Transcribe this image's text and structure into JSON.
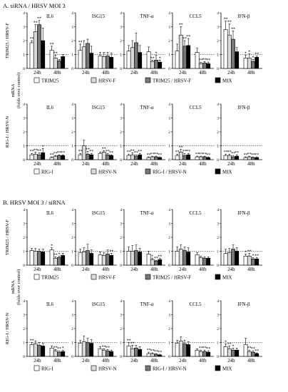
{
  "sections": [
    {
      "title": "A.  siRNA / HRSV MOI 3",
      "rows": [
        {
          "ylabel": "TRIM25 / HRSV-F",
          "legend": [
            "TRIM25",
            "HRSV-F",
            "TRIM25 / HRSV-F",
            "MIX"
          ]
        },
        {
          "ylabel": "RIG-I / HRSV-N",
          "legend": [
            "RIG-I",
            "HRSV-N",
            "RIG-I / HRSV-N",
            "MIX"
          ]
        }
      ]
    },
    {
      "title": "B.  HRSV MOI 3 / siRNA",
      "rows": [
        {
          "ylabel": "TRIM25 / HRSV-F",
          "legend": [
            "TRIM25",
            "HRSV-F",
            "TRIM25 / HRSV-F",
            "MIX"
          ]
        },
        {
          "ylabel": "RIG-I / HRSV-N",
          "legend": [
            "RIG-I",
            "HRSV-N",
            "RIG-I / HRSV-N",
            "MIX"
          ]
        }
      ]
    }
  ],
  "shared_ylabel": [
    "mRNA",
    "(folds over control)"
  ],
  "colors": {
    "bar_1": "#ffffff",
    "bar_2": "#d9d9d9",
    "bar_3": "#777777",
    "bar_4": "#000000"
  },
  "chart_data": {
    "type": "bar",
    "categories": [
      "24h",
      "48h"
    ],
    "genes": [
      "IL6",
      "ISG15",
      "TNF-α",
      "CCL5",
      "IFN-β"
    ],
    "ylim": [
      0,
      4
    ],
    "yticks": [
      0,
      1,
      2,
      3,
      4
    ],
    "reference_line": 1,
    "panels": [
      {
        "section": 0,
        "row": 0,
        "gene": "IL6",
        "values": [
          [
            1.85,
            2.65,
            3.15,
            2.0
          ],
          [
            1.3,
            0.75,
            0.55,
            0.85
          ]
        ],
        "errors": [
          [
            0.15,
            0.5,
            0.3,
            0.9
          ],
          [
            0.3,
            0.2,
            0.1,
            0.15
          ]
        ],
        "stars": [
          [
            "**",
            "**",
            "**",
            ""
          ],
          [
            "**",
            "**",
            "",
            ""
          ]
        ]
      },
      {
        "section": 0,
        "row": 0,
        "gene": "ISG15",
        "values": [
          [
            1.3,
            1.55,
            1.8,
            1.1
          ],
          [
            0.9,
            0.85,
            0.9,
            0.8
          ]
        ],
        "errors": [
          [
            0.45,
            0.45,
            0.3,
            0.5
          ],
          [
            0.25,
            0.3,
            0.25,
            0.3
          ]
        ],
        "stars": [
          [
            "**",
            "",
            "",
            ""
          ],
          [
            "",
            "",
            "",
            ""
          ]
        ]
      },
      {
        "section": 0,
        "row": 0,
        "gene": "TNF-α",
        "values": [
          [
            1.25,
            1.5,
            1.85,
            1.15
          ],
          [
            1.2,
            0.5,
            0.6,
            0.45
          ]
        ],
        "errors": [
          [
            0.4,
            0.5,
            0.7,
            0.5
          ],
          [
            0.35,
            0.1,
            0.35,
            0.15
          ]
        ],
        "stars": [
          [
            "",
            "",
            "",
            ""
          ],
          [
            "",
            "**",
            "*",
            "*"
          ]
        ]
      },
      {
        "section": 0,
        "row": 0,
        "gene": "CCL5",
        "values": [
          [
            1.25,
            2.4,
            1.6,
            1.65
          ],
          [
            1.15,
            0.35,
            0.4,
            0.35
          ]
        ],
        "errors": [
          [
            0.5,
            0.6,
            0.4,
            0.5
          ],
          [
            0.3,
            0.1,
            0.1,
            0.1
          ]
        ],
        "stars": [
          [
            "",
            "**",
            "**",
            "**"
          ],
          [
            "",
            "**",
            "**",
            "**"
          ]
        ]
      },
      {
        "section": 0,
        "row": 0,
        "gene": "IFN-β",
        "values": [
          [
            2.8,
            2.4,
            2.1,
            1.2
          ],
          [
            0.75,
            0.75,
            0.5,
            0.8
          ]
        ],
        "errors": [
          [
            0.6,
            0.8,
            0.6,
            0.3
          ],
          [
            0.2,
            0.3,
            0.15,
            0.1
          ]
        ],
        "stars": [
          [
            "**",
            "**",
            "**",
            ""
          ],
          [
            "*",
            "*",
            "*",
            "**"
          ]
        ]
      },
      {
        "section": 0,
        "row": 1,
        "gene": "IL6",
        "values": [
          [
            0.35,
            0.4,
            0.35,
            0.5
          ],
          [
            0.15,
            0.25,
            0.3,
            0.3
          ]
        ],
        "errors": [
          [
            0.1,
            0.15,
            0.15,
            0.3
          ],
          [
            0.05,
            0.05,
            0.05,
            0.05
          ]
        ],
        "stars": [
          [
            "**",
            "**",
            "**",
            "*"
          ],
          [
            "**",
            "**",
            "**",
            "**"
          ]
        ]
      },
      {
        "section": 0,
        "row": 1,
        "gene": "ISG15",
        "values": [
          [
            0.35,
            1.0,
            0.4,
            0.35
          ],
          [
            0.45,
            0.55,
            0.35,
            0.3
          ]
        ],
        "errors": [
          [
            0.1,
            0.4,
            0.2,
            0.1
          ],
          [
            0.1,
            0.1,
            0.1,
            0.05
          ]
        ],
        "stars": [
          [
            "**",
            "",
            "**",
            "**"
          ],
          [
            "",
            "**",
            "**",
            "**"
          ]
        ]
      },
      {
        "section": 0,
        "row": 1,
        "gene": "TNF-α",
        "values": [
          [
            0.3,
            0.35,
            0.25,
            0.35
          ],
          [
            0.15,
            0.2,
            0.2,
            0.15
          ]
        ],
        "errors": [
          [
            0.1,
            0.15,
            0.1,
            0.1
          ],
          [
            0.05,
            0.05,
            0.05,
            0.05
          ]
        ],
        "stars": [
          [
            "**",
            "**",
            "**",
            "**"
          ],
          [
            "**",
            "**",
            "**",
            "**"
          ]
        ]
      },
      {
        "section": 0,
        "row": 1,
        "gene": "CCL5",
        "values": [
          [
            0.3,
            0.55,
            0.3,
            0.35
          ],
          [
            0.2,
            0.2,
            0.2,
            0.15
          ]
        ],
        "errors": [
          [
            0.1,
            0.2,
            0.15,
            0.1
          ],
          [
            0.05,
            0.05,
            0.05,
            0.05
          ]
        ],
        "stars": [
          [
            "**",
            "**",
            "**",
            "**"
          ],
          [
            "**",
            "**",
            "**",
            "**"
          ]
        ]
      },
      {
        "section": 0,
        "row": 1,
        "gene": "IFN-β",
        "values": [
          [
            0.3,
            0.3,
            0.2,
            0.25
          ],
          [
            0.15,
            0.2,
            0.15,
            0.15
          ]
        ],
        "errors": [
          [
            0.1,
            0.1,
            0.1,
            0.1
          ],
          [
            0.05,
            0.05,
            0.05,
            0.05
          ]
        ],
        "stars": [
          [
            "**",
            "**",
            "**",
            "**"
          ],
          [
            "**",
            "**",
            "**",
            "**"
          ]
        ]
      },
      {
        "section": 1,
        "row": 0,
        "gene": "IL6",
        "values": [
          [
            1.05,
            1.0,
            1.0,
            0.95
          ],
          [
            1.1,
            0.5,
            0.55,
            0.7
          ]
        ],
        "errors": [
          [
            0.15,
            0.2,
            0.15,
            0.2
          ],
          [
            0.15,
            0.1,
            0.1,
            0.15
          ]
        ],
        "stars": [
          [
            "",
            "",
            "",
            ""
          ],
          [
            "*",
            "**",
            "*",
            ""
          ]
        ]
      },
      {
        "section": 1,
        "row": 0,
        "gene": "ISG15",
        "values": [
          [
            0.9,
            0.95,
            1.05,
            0.85
          ],
          [
            0.75,
            0.7,
            0.8,
            0.7
          ]
        ],
        "errors": [
          [
            0.25,
            0.3,
            0.45,
            0.25
          ],
          [
            0.2,
            0.2,
            0.3,
            0.15
          ]
        ],
        "stars": [
          [
            "",
            "",
            "",
            ""
          ],
          [
            "",
            "",
            "",
            "**"
          ]
        ]
      },
      {
        "section": 1,
        "row": 0,
        "gene": "TNF-α",
        "values": [
          [
            1.0,
            1.0,
            1.05,
            0.95
          ],
          [
            0.8,
            0.4,
            0.3,
            0.4
          ]
        ],
        "errors": [
          [
            0.3,
            0.4,
            0.4,
            0.25
          ],
          [
            0.2,
            0.1,
            0.05,
            0.1
          ]
        ],
        "stars": [
          [
            "",
            "",
            "",
            ""
          ],
          [
            "",
            "*",
            "**",
            "**"
          ]
        ]
      },
      {
        "section": 1,
        "row": 0,
        "gene": "CCL5",
        "values": [
          [
            1.0,
            1.15,
            1.05,
            0.95
          ],
          [
            0.75,
            0.55,
            0.5,
            0.5
          ]
        ],
        "errors": [
          [
            0.3,
            0.3,
            0.25,
            0.3
          ],
          [
            0.15,
            0.1,
            0.1,
            0.1
          ]
        ],
        "stars": [
          [
            "",
            "",
            "",
            ""
          ],
          [
            "",
            "",
            "",
            ""
          ]
        ]
      },
      {
        "section": 1,
        "row": 0,
        "gene": "IFN-β",
        "values": [
          [
            0.85,
            0.9,
            1.15,
            1.0
          ],
          [
            0.65,
            0.65,
            0.45,
            0.45
          ]
        ],
        "errors": [
          [
            0.3,
            0.3,
            0.3,
            0.25
          ],
          [
            0.15,
            0.2,
            0.1,
            0.1
          ]
        ],
        "stars": [
          [
            "",
            "",
            "",
            ""
          ],
          [
            "*",
            "**",
            "*",
            "**"
          ]
        ]
      },
      {
        "section": 1,
        "row": 1,
        "gene": "IL6",
        "values": [
          [
            0.85,
            0.9,
            0.8,
            0.75
          ],
          [
            0.6,
            0.4,
            0.3,
            0.35
          ]
        ],
        "errors": [
          [
            0.15,
            0.2,
            0.2,
            0.2
          ],
          [
            0.15,
            0.1,
            0.1,
            0.1
          ]
        ],
        "stars": [
          [
            "**",
            "",
            "",
            ""
          ],
          [
            "",
            "**",
            "**",
            "*"
          ]
        ]
      },
      {
        "section": 1,
        "row": 1,
        "gene": "ISG15",
        "values": [
          [
            0.95,
            1.05,
            1.0,
            0.95
          ],
          [
            0.55,
            0.45,
            0.4,
            0.35
          ]
        ],
        "errors": [
          [
            0.2,
            0.4,
            0.3,
            0.25
          ],
          [
            0.15,
            0.1,
            0.1,
            0.1
          ]
        ],
        "stars": [
          [
            "",
            "",
            "",
            ""
          ],
          [
            "",
            "**",
            "**",
            ""
          ]
        ]
      },
      {
        "section": 1,
        "row": 1,
        "gene": "TNF-α",
        "values": [
          [
            0.75,
            0.55,
            0.6,
            0.5
          ],
          [
            0.2,
            0.2,
            0.15,
            0.1
          ]
        ],
        "errors": [
          [
            0.25,
            0.25,
            0.2,
            0.2
          ],
          [
            0.1,
            0.05,
            0.05,
            0.05
          ]
        ],
        "stars": [
          [
            "**",
            "**",
            "",
            ""
          ],
          [
            "**",
            "**",
            "**",
            "**"
          ]
        ]
      },
      {
        "section": 1,
        "row": 1,
        "gene": "CCL5",
        "values": [
          [
            0.95,
            1.1,
            0.9,
            0.85
          ],
          [
            0.45,
            0.35,
            0.35,
            0.3
          ]
        ],
        "errors": [
          [
            0.2,
            0.3,
            0.25,
            0.2
          ],
          [
            0.1,
            0.1,
            0.1,
            0.1
          ]
        ],
        "stars": [
          [
            "",
            "",
            "",
            ""
          ],
          [
            "",
            "**",
            "**",
            "**"
          ]
        ]
      },
      {
        "section": 1,
        "row": 1,
        "gene": "IFN-β",
        "values": [
          [
            0.7,
            0.55,
            0.45,
            0.45
          ],
          [
            0.85,
            0.35,
            0.3,
            0.2
          ]
        ],
        "errors": [
          [
            0.2,
            0.2,
            0.15,
            0.15
          ],
          [
            0.45,
            0.1,
            0.1,
            0.05
          ]
        ],
        "stars": [
          [
            "*",
            "**",
            "*",
            ""
          ],
          [
            "",
            "**",
            "**",
            "**"
          ]
        ]
      }
    ]
  }
}
